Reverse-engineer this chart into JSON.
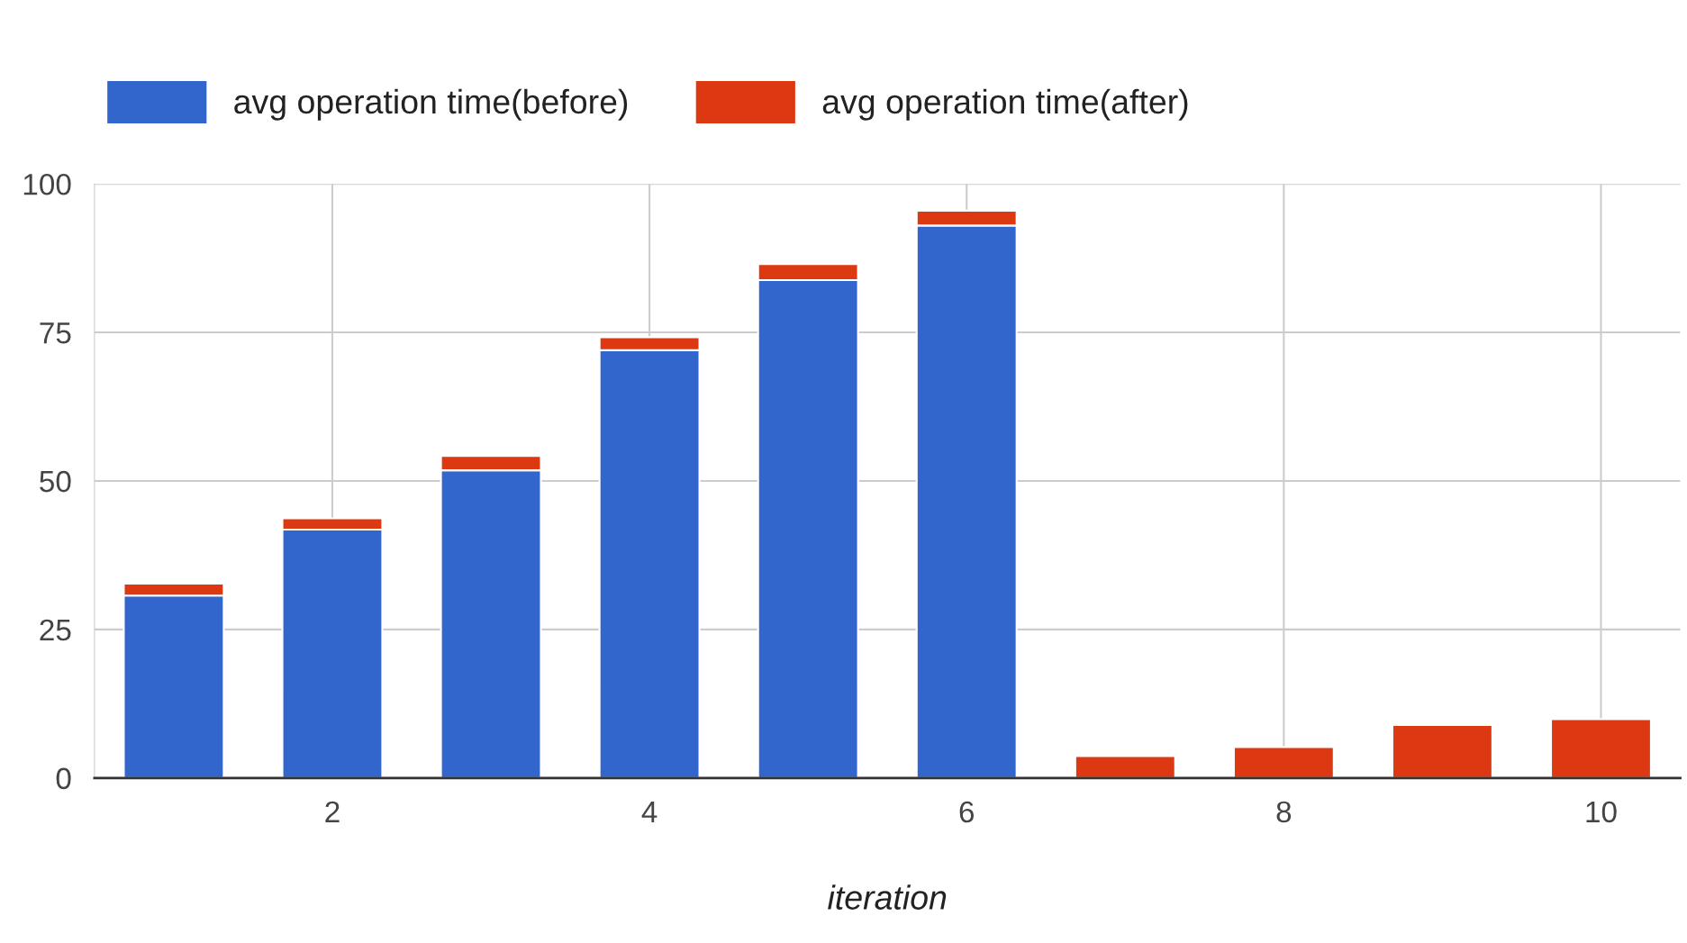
{
  "chart_data": {
    "type": "bar",
    "stacked": true,
    "xlabel": "iteration",
    "x": [
      1,
      2,
      3,
      4,
      5,
      6,
      7,
      8,
      9,
      10
    ],
    "series": [
      {
        "name": "avg operation time(before)",
        "color": "#3366cc",
        "values": [
          30.7,
          41.8,
          51.8,
          72,
          83.8,
          93,
          null,
          null,
          null,
          null
        ]
      },
      {
        "name": "avg operation time(after)",
        "color": "#dc3912",
        "values": [
          2,
          1.9,
          2.4,
          2.2,
          2.7,
          2.5,
          3.7,
          5.2,
          8.9,
          9.9
        ]
      }
    ],
    "xlim": [
      0.5,
      10.5
    ],
    "xticks": [
      2,
      4,
      6,
      8,
      10
    ],
    "ylim": [
      0,
      100
    ],
    "yticks": [
      0,
      25,
      50,
      75,
      100
    ],
    "grid": true,
    "legend": "top left"
  }
}
